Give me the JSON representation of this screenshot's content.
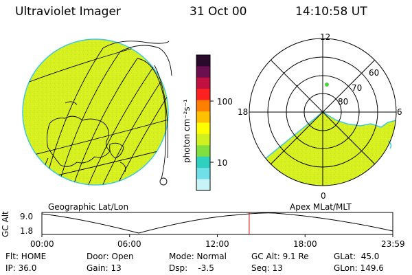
{
  "header": {
    "instrument": "Ultraviolet Imager",
    "date": "31 Oct 00",
    "time": "14:10:58 UT"
  },
  "colorbar": {
    "unit_label": "photon cm⁻²s⁻¹",
    "tick_high": "100",
    "tick_low": "10",
    "colors": [
      "#2a0a2a",
      "#6a1050",
      "#c01040",
      "#ff2020",
      "#ff8000",
      "#ffc000",
      "#ffff00",
      "#d0f020",
      "#80e040",
      "#30d0c0",
      "#70e0e8",
      "#c8f4f8"
    ]
  },
  "polar": {
    "label_top": "12",
    "label_left": "18",
    "label_right": "6",
    "label_bottom": "0",
    "ring_60": "60",
    "ring_70": "70",
    "ring_80": "80"
  },
  "map_labels": {
    "left": "Geographic Lat/Lon",
    "right": "Apex MLat/MLT"
  },
  "altitude_plot": {
    "axis_label": "GC Alt",
    "ytick_top": "9.0",
    "ytick_bottom": "1.8",
    "xticks": [
      "00:00",
      "06:00",
      "12:00",
      "18:00",
      "23:59"
    ],
    "current_time_marker_hours": 14.18
  },
  "info": {
    "flt": "Flt: HOME",
    "ip": "IP: 36.0",
    "door": "Door: Open",
    "gain": "Gain: 13",
    "mode": "Mode: Normal",
    "dsp": "Dsp:    -3.5",
    "gc_alt": "GC Alt: 9.1 Re",
    "seq": "Seq: 13",
    "glat": "GLat:  45.0",
    "glon": "GLon: 149.6"
  },
  "colors": {
    "emission": "#d8f020",
    "edge": "#40c8e0",
    "marker": "#cc0000"
  }
}
